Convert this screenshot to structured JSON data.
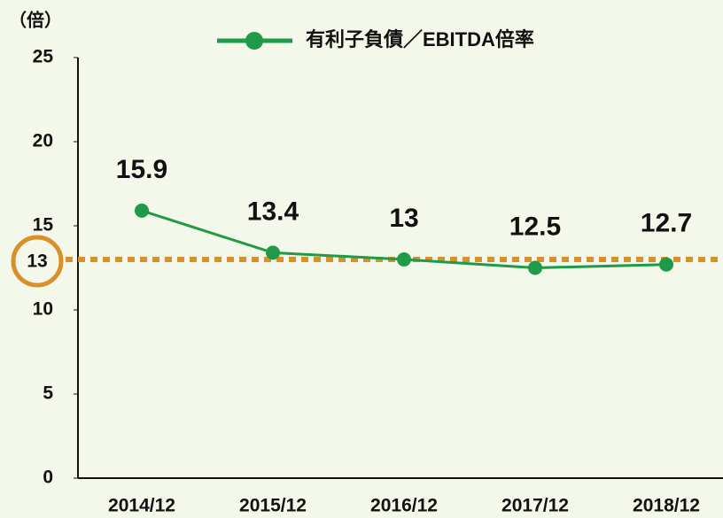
{
  "chart_data": {
    "type": "line",
    "unit_label": "（倍）",
    "categories": [
      "2014/12",
      "2015/12",
      "2016/12",
      "2017/12",
      "2018/12"
    ],
    "series": [
      {
        "name": "有利子負債／EBITDA倍率",
        "color": "#1e9a48",
        "values": [
          15.9,
          13.4,
          13,
          12.5,
          12.7
        ]
      }
    ],
    "ylim": [
      0,
      25
    ],
    "yticks": [
      0,
      5,
      10,
      15,
      20,
      25
    ],
    "reference_value": 13,
    "reference_color": "#d9902a",
    "legend": "top"
  }
}
